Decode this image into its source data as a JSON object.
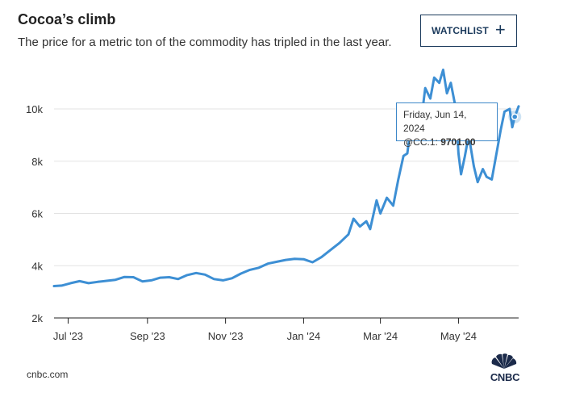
{
  "header": {
    "title": "Cocoa’s climb",
    "subtitle": "The price for a metric ton of the commodity has tripled in the last year.",
    "watchlist_label": "WATCHLIST",
    "watchlist_icon": "plus-icon"
  },
  "tooltip": {
    "date": "Friday, Jun 14, 2024",
    "symbol": "@CC.1:",
    "value": "9701.00"
  },
  "footer": {
    "source": "cnbc.com",
    "logo_text": "CNBC"
  },
  "colors": {
    "line": "#3d8fd4",
    "grid": "#e3e3e3",
    "text": "#222222",
    "brand": "#1b3a5c"
  },
  "chart_data": {
    "type": "line",
    "title": "Cocoa’s climb",
    "xlabel": "",
    "ylabel": "",
    "ylim": [
      2000,
      11700
    ],
    "yticks": [
      2000,
      4000,
      6000,
      8000,
      10000
    ],
    "ytick_labels": [
      "2k",
      "4k",
      "6k",
      "8k",
      "10k"
    ],
    "xticks": [
      "2023-07-01",
      "2023-09-01",
      "2023-11-01",
      "2024-01-01",
      "2024-03-01",
      "2024-05-01"
    ],
    "xtick_labels": [
      "Jul '23",
      "Sep '23",
      "Nov '23",
      "Jan '24",
      "Mar '24",
      "May '24"
    ],
    "xlim": [
      "2023-06-20",
      "2024-06-17"
    ],
    "series": [
      {
        "name": "@CC.1",
        "points": [
          [
            "2023-06-20",
            3220
          ],
          [
            "2023-06-26",
            3240
          ],
          [
            "2023-07-03",
            3330
          ],
          [
            "2023-07-10",
            3410
          ],
          [
            "2023-07-17",
            3330
          ],
          [
            "2023-07-24",
            3380
          ],
          [
            "2023-07-31",
            3420
          ],
          [
            "2023-08-07",
            3460
          ],
          [
            "2023-08-14",
            3570
          ],
          [
            "2023-08-21",
            3560
          ],
          [
            "2023-08-28",
            3400
          ],
          [
            "2023-09-04",
            3440
          ],
          [
            "2023-09-11",
            3540
          ],
          [
            "2023-09-18",
            3560
          ],
          [
            "2023-09-25",
            3490
          ],
          [
            "2023-10-02",
            3640
          ],
          [
            "2023-10-09",
            3720
          ],
          [
            "2023-10-16",
            3660
          ],
          [
            "2023-10-23",
            3490
          ],
          [
            "2023-10-30",
            3440
          ],
          [
            "2023-11-06",
            3520
          ],
          [
            "2023-11-13",
            3700
          ],
          [
            "2023-11-20",
            3840
          ],
          [
            "2023-11-27",
            3920
          ],
          [
            "2023-12-04",
            4080
          ],
          [
            "2023-12-11",
            4150
          ],
          [
            "2023-12-18",
            4220
          ],
          [
            "2023-12-25",
            4260
          ],
          [
            "2024-01-01",
            4250
          ],
          [
            "2024-01-08",
            4130
          ],
          [
            "2024-01-15",
            4330
          ],
          [
            "2024-01-22",
            4600
          ],
          [
            "2024-01-29",
            4870
          ],
          [
            "2024-02-05",
            5200
          ],
          [
            "2024-02-09",
            5800
          ],
          [
            "2024-02-14",
            5500
          ],
          [
            "2024-02-19",
            5700
          ],
          [
            "2024-02-22",
            5400
          ],
          [
            "2024-02-27",
            6500
          ],
          [
            "2024-03-01",
            6000
          ],
          [
            "2024-03-06",
            6600
          ],
          [
            "2024-03-11",
            6300
          ],
          [
            "2024-03-15",
            7300
          ],
          [
            "2024-03-19",
            8200
          ],
          [
            "2024-03-22",
            8300
          ],
          [
            "2024-03-26",
            9800
          ],
          [
            "2024-03-28",
            9700
          ],
          [
            "2024-04-02",
            9600
          ],
          [
            "2024-04-05",
            10800
          ],
          [
            "2024-04-09",
            10400
          ],
          [
            "2024-04-12",
            11200
          ],
          [
            "2024-04-16",
            11000
          ],
          [
            "2024-04-19",
            11500
          ],
          [
            "2024-04-22",
            10600
          ],
          [
            "2024-04-25",
            11000
          ],
          [
            "2024-04-29",
            10000
          ],
          [
            "2024-05-01",
            8300
          ],
          [
            "2024-05-03",
            7500
          ],
          [
            "2024-05-06",
            8200
          ],
          [
            "2024-05-09",
            9000
          ],
          [
            "2024-05-13",
            7800
          ],
          [
            "2024-05-16",
            7200
          ],
          [
            "2024-05-20",
            7700
          ],
          [
            "2024-05-23",
            7400
          ],
          [
            "2024-05-27",
            7300
          ],
          [
            "2024-05-30",
            8100
          ],
          [
            "2024-06-03",
            9200
          ],
          [
            "2024-06-06",
            9900
          ],
          [
            "2024-06-10",
            10000
          ],
          [
            "2024-06-12",
            9300
          ],
          [
            "2024-06-14",
            9701
          ],
          [
            "2024-06-17",
            10100
          ]
        ]
      }
    ],
    "highlight": {
      "date": "2024-06-14",
      "value": 9701.0
    }
  }
}
